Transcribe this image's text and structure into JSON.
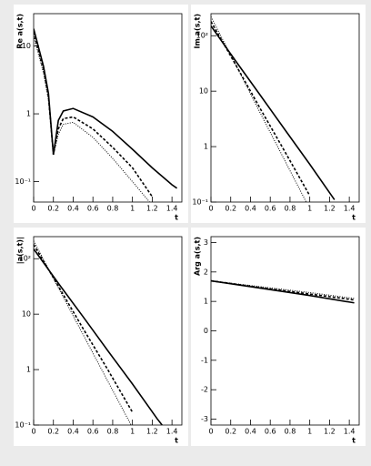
{
  "chart_data": [
    {
      "type": "line",
      "ylabel": "Re a(s,t)",
      "xlabel": "t",
      "log_y": true,
      "xlim": [
        0,
        1.5
      ],
      "xticks": [
        0,
        0.2,
        0.4,
        0.6,
        0.8,
        1,
        1.2,
        1.4
      ],
      "ylim": [
        0.05,
        30
      ],
      "yticks": [
        {
          "value": 0.1,
          "label": "10⁻¹"
        },
        1,
        10
      ],
      "x": [
        0,
        0.1,
        0.15,
        0.2,
        0.25,
        0.3,
        0.4,
        0.6,
        0.8,
        1.0,
        1.2,
        1.4,
        1.45
      ],
      "series": [
        {
          "color": "#000000",
          "style": "solid",
          "values": [
            18,
            5,
            2,
            0.25,
            0.8,
            1.1,
            1.2,
            0.9,
            0.55,
            0.3,
            0.16,
            0.09,
            0.08
          ]
        },
        {
          "color": "#000000",
          "style": "dashed",
          "values": [
            16,
            4.5,
            1.8,
            0.25,
            0.6,
            0.85,
            0.9,
            0.6,
            0.32,
            0.16,
            0.06,
            null,
            null
          ]
        },
        {
          "color": "#000000",
          "style": "dotted",
          "values": [
            14,
            4,
            1.6,
            0.25,
            0.5,
            0.7,
            0.75,
            0.45,
            0.22,
            0.1,
            0.045,
            null,
            null
          ]
        }
      ]
    },
    {
      "type": "line",
      "ylabel": "Im a(s,t)",
      "xlabel": "t",
      "log_y": true,
      "xlim": [
        0,
        1.5
      ],
      "xticks": [
        0,
        0.2,
        0.4,
        0.6,
        0.8,
        1,
        1.2,
        1.4
      ],
      "ylim": [
        0.1,
        250
      ],
      "yticks": [
        {
          "value": 0.1,
          "label": "10⁻¹"
        },
        1,
        10,
        {
          "value": 100,
          "label": "10²"
        }
      ],
      "x": [
        0,
        0.25,
        0.5,
        0.75,
        1.0,
        1.25
      ],
      "series": [
        {
          "color": "#000000",
          "style": "solid",
          "values": [
            150,
            35,
            8.4,
            2,
            0.48,
            0.11
          ]
        },
        {
          "color": "#000000",
          "style": "dashed",
          "values": [
            180,
            30,
            4.8,
            0.8,
            0.13,
            null
          ]
        },
        {
          "color": "#000000",
          "style": "dotted",
          "values": [
            220,
            30,
            4,
            0.55,
            0.075,
            null
          ]
        }
      ]
    },
    {
      "type": "line",
      "ylabel": "|a(s,t)|",
      "xlabel": "t",
      "log_y": true,
      "xlim": [
        0,
        1.5
      ],
      "xticks": [
        0,
        0.2,
        0.4,
        0.6,
        0.8,
        1,
        1.2,
        1.4
      ],
      "ylim": [
        0.1,
        250
      ],
      "yticks": [
        {
          "value": 0.1,
          "label": "10⁻¹"
        },
        1,
        10,
        {
          "value": 100,
          "label": "10²"
        }
      ],
      "x": [
        0,
        0.25,
        0.5,
        0.75,
        1.0,
        1.25,
        1.3
      ],
      "series": [
        {
          "color": "#000000",
          "style": "solid",
          "values": [
            150,
            36,
            9,
            2.2,
            0.55,
            0.13,
            0.1
          ]
        },
        {
          "color": "#000000",
          "style": "dashed",
          "values": [
            180,
            32,
            5.5,
            1,
            0.17,
            null,
            null
          ]
        },
        {
          "color": "#000000",
          "style": "dotted",
          "values": [
            210,
            30,
            4.3,
            0.62,
            0.09,
            null,
            null
          ]
        }
      ]
    },
    {
      "type": "line",
      "ylabel": "Arg a(s,t)",
      "xlabel": "t",
      "log_y": false,
      "xlim": [
        0,
        1.5
      ],
      "xticks": [
        0,
        0.2,
        0.4,
        0.6,
        0.8,
        1,
        1.2,
        1.4
      ],
      "ylim": [
        -3.2,
        3.2
      ],
      "yticks": [
        -3,
        -2,
        -1,
        0,
        1,
        2,
        3
      ],
      "x": [
        0,
        0.5,
        1.0,
        1.45
      ],
      "series": [
        {
          "color": "#000000",
          "style": "solid",
          "values": [
            1.7,
            1.45,
            1.2,
            0.95
          ]
        },
        {
          "color": "#000000",
          "style": "dashed",
          "values": [
            1.7,
            1.47,
            1.25,
            1.05
          ]
        },
        {
          "color": "#000000",
          "style": "dotted",
          "values": [
            1.7,
            1.5,
            1.3,
            1.1
          ]
        }
      ]
    }
  ]
}
